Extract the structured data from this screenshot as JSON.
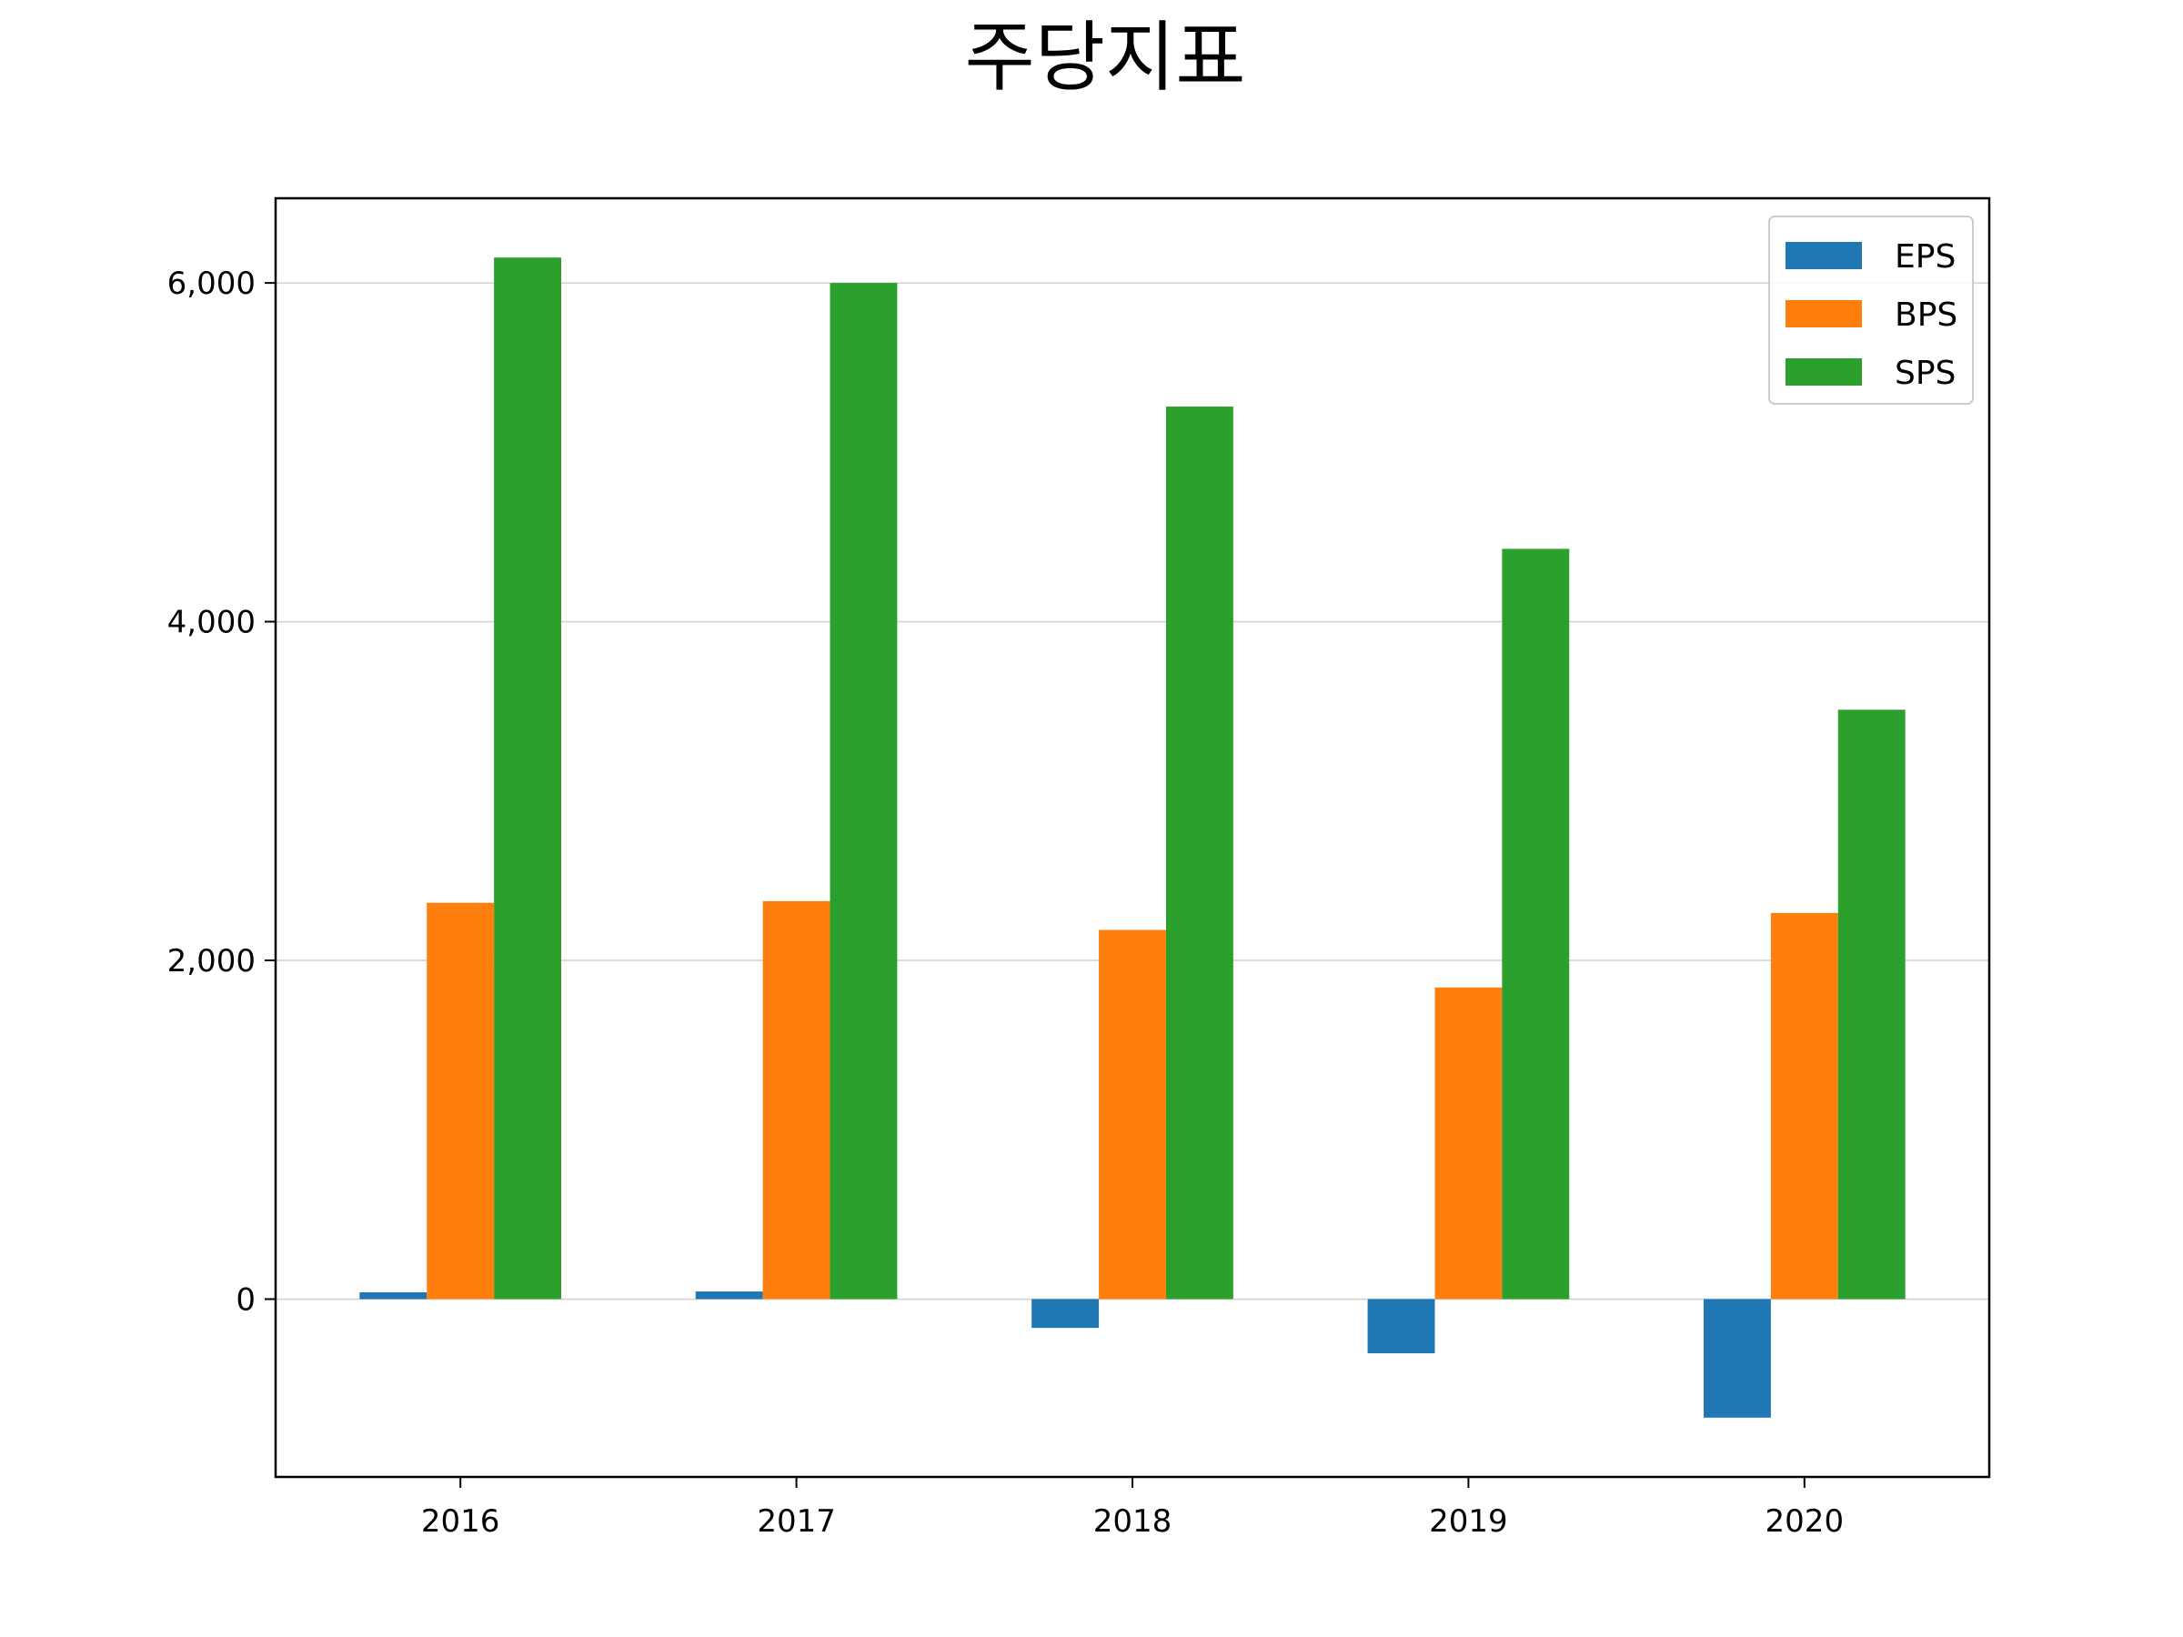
{
  "chart_data": {
    "type": "bar",
    "title": "주당지표",
    "xlabel": "",
    "ylabel": "",
    "categories": [
      "2016",
      "2017",
      "2018",
      "2019",
      "2020"
    ],
    "series": [
      {
        "name": "EPS",
        "color": "#1f77b4",
        "values": [
          40,
          45,
          -170,
          -320,
          -700
        ]
      },
      {
        "name": "BPS",
        "color": "#ff7f0e",
        "values": [
          2340,
          2350,
          2180,
          1840,
          2280
        ]
      },
      {
        "name": "SPS",
        "color": "#2ca02c",
        "values": [
          6150,
          6000,
          5270,
          4430,
          3480
        ]
      }
    ],
    "ylim": [
      -1050,
      6500
    ],
    "yticks": [
      0,
      2000,
      4000,
      6000
    ],
    "ytick_labels": [
      "0",
      "2,000",
      "4,000",
      "6,000"
    ],
    "grid": "horizontal",
    "legend_position": "top-right"
  }
}
